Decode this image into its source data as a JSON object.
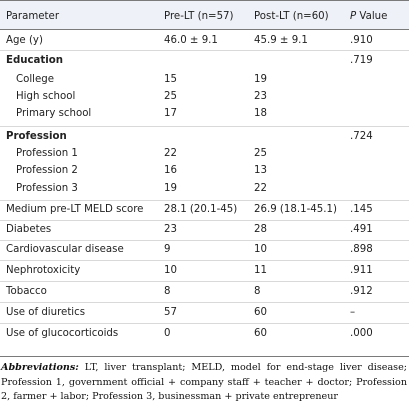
{
  "table": {
    "columns": [
      "Parameter",
      "Pre-LT (n=57)",
      "Post-LT (n=60)",
      "P",
      "Value"
    ],
    "rows": [
      {
        "label": "Age (y)",
        "pre": "46.0 ± 9.1",
        "post": "45.9 ± 9.1",
        "p": ".910"
      },
      {
        "label": "Education",
        "pre": "",
        "post": "",
        "p": ".719"
      },
      {
        "label": "College",
        "pre": "15",
        "post": "19",
        "p": ""
      },
      {
        "label": "High school",
        "pre": "25",
        "post": "23",
        "p": ""
      },
      {
        "label": "Primary school",
        "pre": "17",
        "post": "18",
        "p": ""
      },
      {
        "label": "Profession",
        "pre": "",
        "post": "",
        "p": ".724"
      },
      {
        "label": "Profession 1",
        "pre": "22",
        "post": "25",
        "p": ""
      },
      {
        "label": "Profession 2",
        "pre": "16",
        "post": "13",
        "p": ""
      },
      {
        "label": "Profession 3",
        "pre": "19",
        "post": "22",
        "p": ""
      },
      {
        "label": "Medium pre-LT MELD score",
        "pre": "28.1 (20.1-45)",
        "post": "26.9 (18.1-45.1)",
        "p": ".145"
      },
      {
        "label": "Diabetes",
        "pre": "23",
        "post": "28",
        "p": ".491"
      },
      {
        "label": "Cardiovascular disease",
        "pre": "9",
        "post": "10",
        "p": ".898"
      },
      {
        "label": "Nephrotoxicity",
        "pre": "10",
        "post": "11",
        "p": ".911"
      },
      {
        "label": "Tobacco",
        "pre": "8",
        "post": "8",
        "p": ".912"
      },
      {
        "label": "Use of diuretics",
        "pre": "57",
        "post": "60",
        "p": "–"
      },
      {
        "label": "Use of glucocorticoids",
        "pre": "0",
        "post": "60",
        "p": ".000"
      }
    ]
  },
  "footnote": {
    "abbr_label": "Abbreviations:",
    "text": "LT, liver transplant; MELD, model for end-stage liver disease; Profession 1, government official + company staff + teacher + doctor; Profession 2, farmer + labor; Profession 3, businessman + private entrepreneur"
  }
}
